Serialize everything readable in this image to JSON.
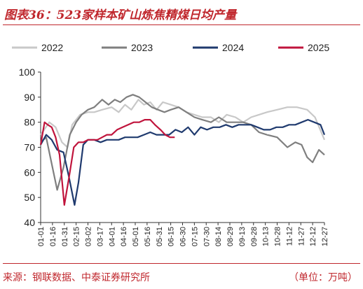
{
  "header": {
    "title": "图表36：523家样本矿山炼焦精煤日均产量"
  },
  "footer": {
    "source": "来源：钢联数据、中泰证券研究所",
    "unit": "（单位：万吨）"
  },
  "chart_data": {
    "type": "line",
    "title": "",
    "xlabel": "",
    "ylabel": "",
    "ylim": [
      40,
      100
    ],
    "yticks": [
      40,
      50,
      60,
      70,
      80,
      90,
      100
    ],
    "grid": false,
    "legend_position": "top",
    "x_ticks": [
      "01-01",
      "01-16",
      "01-31",
      "02-15",
      "03-02",
      "03-17",
      "04-01",
      "04-16",
      "05-01",
      "05-16",
      "05-31",
      "06-15",
      "06-30",
      "07-15",
      "07-30",
      "08-14",
      "08-29",
      "09-13",
      "09-28",
      "10-13",
      "10-28",
      "11-12",
      "11-27",
      "12-12",
      "12-27"
    ],
    "series": [
      {
        "name": "2022",
        "color": "#c8c8c8",
        "points": [
          [
            "01-01",
            75
          ],
          [
            "01-12",
            80
          ],
          [
            "01-20",
            78
          ],
          [
            "01-28",
            72
          ],
          [
            "02-04",
            70
          ],
          [
            "02-10",
            79
          ],
          [
            "02-20",
            83
          ],
          [
            "03-02",
            84
          ],
          [
            "03-10",
            84
          ],
          [
            "03-20",
            85
          ],
          [
            "04-01",
            86
          ],
          [
            "04-10",
            84
          ],
          [
            "04-18",
            87
          ],
          [
            "04-26",
            85
          ],
          [
            "05-05",
            89
          ],
          [
            "05-12",
            87
          ],
          [
            "05-20",
            88
          ],
          [
            "05-28",
            85
          ],
          [
            "06-05",
            88
          ],
          [
            "06-15",
            87
          ],
          [
            "06-25",
            86
          ],
          [
            "07-05",
            84
          ],
          [
            "07-15",
            83
          ],
          [
            "07-25",
            82
          ],
          [
            "08-05",
            82
          ],
          [
            "08-15",
            80
          ],
          [
            "08-25",
            83
          ],
          [
            "09-05",
            82
          ],
          [
            "09-15",
            80
          ],
          [
            "09-25",
            82
          ],
          [
            "10-05",
            83
          ],
          [
            "10-15",
            84
          ],
          [
            "10-28",
            85
          ],
          [
            "11-10",
            86
          ],
          [
            "11-22",
            86
          ],
          [
            "12-05",
            85
          ],
          [
            "12-15",
            82
          ],
          [
            "12-27",
            73
          ]
        ]
      },
      {
        "name": "2023",
        "color": "#7f7f7f",
        "points": [
          [
            "01-01",
            72
          ],
          [
            "01-08",
            74
          ],
          [
            "01-14",
            65
          ],
          [
            "01-22",
            53
          ],
          [
            "01-30",
            62
          ],
          [
            "02-07",
            75
          ],
          [
            "02-15",
            80
          ],
          [
            "02-22",
            83
          ],
          [
            "03-02",
            85
          ],
          [
            "03-10",
            86
          ],
          [
            "03-20",
            89
          ],
          [
            "03-28",
            87
          ],
          [
            "04-05",
            89
          ],
          [
            "04-12",
            88
          ],
          [
            "04-20",
            90
          ],
          [
            "04-28",
            91
          ],
          [
            "05-06",
            90
          ],
          [
            "05-14",
            88
          ],
          [
            "05-22",
            86
          ],
          [
            "05-30",
            85
          ],
          [
            "06-07",
            84
          ],
          [
            "06-15",
            85
          ],
          [
            "06-25",
            86
          ],
          [
            "07-05",
            84
          ],
          [
            "07-15",
            82
          ],
          [
            "07-25",
            81
          ],
          [
            "08-05",
            80
          ],
          [
            "08-15",
            82
          ],
          [
            "08-25",
            80
          ],
          [
            "09-05",
            80
          ],
          [
            "09-15",
            80
          ],
          [
            "09-25",
            79
          ],
          [
            "10-05",
            76
          ],
          [
            "10-15",
            75
          ],
          [
            "10-28",
            74
          ],
          [
            "11-10",
            70
          ],
          [
            "11-20",
            72
          ],
          [
            "11-28",
            71
          ],
          [
            "12-05",
            66
          ],
          [
            "12-12",
            64
          ],
          [
            "12-20",
            69
          ],
          [
            "12-27",
            67
          ]
        ]
      },
      {
        "name": "2024",
        "color": "#1f3a6e",
        "points": [
          [
            "01-01",
            71
          ],
          [
            "01-08",
            75
          ],
          [
            "01-15",
            73
          ],
          [
            "01-22",
            69
          ],
          [
            "01-30",
            68
          ],
          [
            "02-06",
            58
          ],
          [
            "02-13",
            47
          ],
          [
            "02-18",
            56
          ],
          [
            "02-24",
            71
          ],
          [
            "03-02",
            73
          ],
          [
            "03-10",
            73
          ],
          [
            "03-18",
            72
          ],
          [
            "03-26",
            73
          ],
          [
            "04-02",
            73
          ],
          [
            "04-10",
            73
          ],
          [
            "04-18",
            74
          ],
          [
            "04-26",
            74
          ],
          [
            "05-04",
            74
          ],
          [
            "05-12",
            75
          ],
          [
            "05-20",
            76
          ],
          [
            "05-28",
            75
          ],
          [
            "06-05",
            75
          ],
          [
            "06-13",
            75
          ],
          [
            "06-21",
            77
          ],
          [
            "06-29",
            76
          ],
          [
            "07-07",
            78
          ],
          [
            "07-15",
            75
          ],
          [
            "07-23",
            78
          ],
          [
            "07-31",
            77
          ],
          [
            "08-08",
            78
          ],
          [
            "08-16",
            78
          ],
          [
            "08-24",
            79
          ],
          [
            "09-01",
            78
          ],
          [
            "09-09",
            79
          ],
          [
            "09-17",
            79
          ],
          [
            "09-25",
            79
          ],
          [
            "10-03",
            78
          ],
          [
            "10-11",
            77
          ],
          [
            "10-19",
            77
          ],
          [
            "10-27",
            78
          ],
          [
            "11-04",
            78
          ],
          [
            "11-12",
            79
          ],
          [
            "11-20",
            79
          ],
          [
            "11-28",
            80
          ],
          [
            "12-06",
            81
          ],
          [
            "12-14",
            80
          ],
          [
            "12-22",
            79
          ],
          [
            "12-27",
            75
          ]
        ]
      },
      {
        "name": "2025",
        "color": "#c0143c",
        "points": [
          [
            "01-01",
            71
          ],
          [
            "01-06",
            80
          ],
          [
            "01-10",
            79
          ],
          [
            "01-15",
            78
          ],
          [
            "01-20",
            74
          ],
          [
            "01-25",
            67
          ],
          [
            "01-31",
            47
          ],
          [
            "02-06",
            58
          ],
          [
            "02-12",
            70
          ],
          [
            "02-18",
            72
          ],
          [
            "02-24",
            72
          ],
          [
            "03-02",
            73
          ],
          [
            "03-08",
            73
          ],
          [
            "03-14",
            73
          ],
          [
            "03-20",
            74
          ],
          [
            "03-26",
            75
          ],
          [
            "04-01",
            75
          ],
          [
            "04-08",
            77
          ],
          [
            "04-15",
            78
          ],
          [
            "04-22",
            79
          ],
          [
            "04-29",
            80
          ],
          [
            "05-06",
            80
          ],
          [
            "05-13",
            81
          ],
          [
            "05-20",
            81
          ],
          [
            "05-26",
            79
          ],
          [
            "06-02",
            77
          ],
          [
            "06-08",
            75
          ],
          [
            "06-14",
            74
          ],
          [
            "06-20",
            74
          ]
        ]
      }
    ]
  }
}
